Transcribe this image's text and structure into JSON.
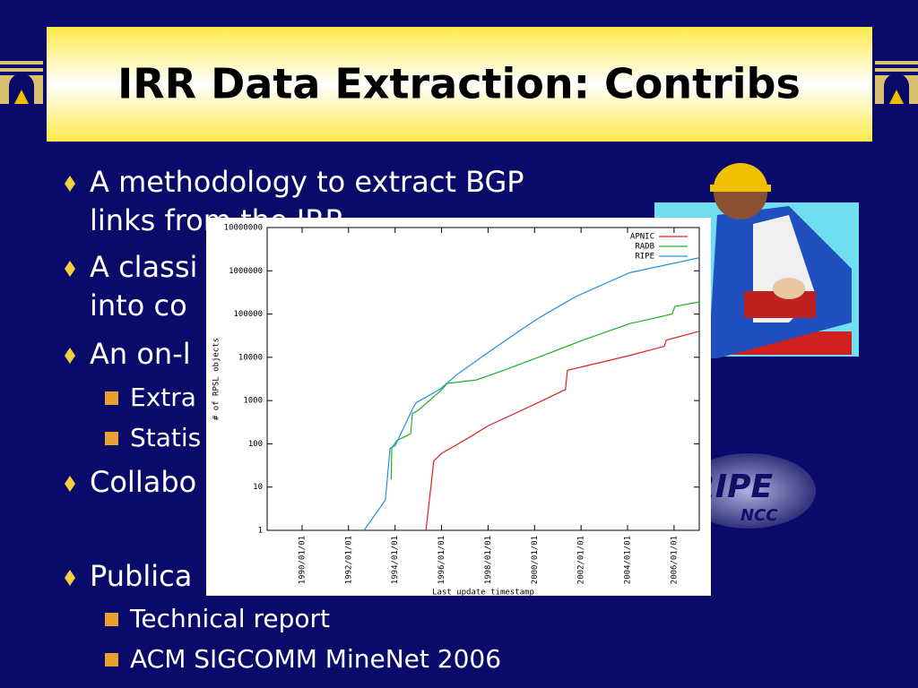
{
  "slide": {
    "title": "IRR Data Extraction: Contribs",
    "bullets": [
      {
        "lines": [
          "A methodology to extract BGP",
          "links from the IRR"
        ],
        "sub": []
      },
      {
        "lines": [
          "A classi",
          "into co"
        ],
        "sub": []
      },
      {
        "lines": [
          "An on-l"
        ],
        "sub": [
          "Extra",
          "Statis"
        ]
      },
      {
        "lines": [
          "Collabo"
        ],
        "sub": []
      },
      {
        "lines": [
          "Publica"
        ],
        "sub": [
          "Technical report",
          "ACM SIGCOMM MineNet 2006"
        ]
      }
    ],
    "logo": [
      "RIPE",
      "NCC"
    ]
  },
  "chart_data": {
    "type": "line",
    "xlabel": "Last update timestamp",
    "ylabel": "# of RPSL objects",
    "log_y": true,
    "legend": "upper right",
    "xlim": [
      "1988/07/01",
      "2007/02/01"
    ],
    "xticks": [
      "1990/01/01",
      "1992/01/01",
      "1994/01/01",
      "1996/01/01",
      "1998/01/01",
      "2000/01/01",
      "2002/01/01",
      "2004/01/01",
      "2006/01/01"
    ],
    "ylim": [
      1,
      10000000
    ],
    "yticks": [
      1,
      10,
      100,
      1000,
      10000,
      100000,
      1000000,
      10000000
    ],
    "series": [
      {
        "name": "APNIC",
        "color": "#e02020",
        "x": [
          "1995/05/01",
          "1995/09/01",
          "1996/01/01",
          "1997/02/01",
          "1998/01/01",
          "2000/03/01",
          "2001/05/01",
          "2001/06/01",
          "2004/02/01",
          "2005/08/01",
          "2005/09/01",
          "2007/02/01"
        ],
        "values": [
          1,
          40,
          60,
          130,
          260,
          900,
          1800,
          5000,
          11000,
          18000,
          25000,
          40000
        ]
      },
      {
        "name": "RADB",
        "color": "#20b020",
        "x": [
          "1993/11/01",
          "1993/11/10",
          "1994/02/01",
          "1994/09/01",
          "1994/10/01",
          "1995/01/01",
          "1995/12/01",
          "1996/04/01",
          "1997/07/01",
          "1998/09/01",
          "2000/03/01",
          "2002/02/01",
          "2004/02/01",
          "2005/12/01",
          "2006/01/15",
          "2007/02/01"
        ],
        "values": [
          15,
          80,
          120,
          170,
          500,
          600,
          1600,
          2500,
          3000,
          5000,
          10000,
          25000,
          60000,
          100000,
          150000,
          190000
        ]
      },
      {
        "name": "RIPE",
        "color": "#2090e0",
        "x": [
          "1992/09/01",
          "1993/08/01",
          "1993/10/15",
          "1994/01/01",
          "1994/10/15",
          "1994/12/01",
          "1995/12/01",
          "1996/09/01",
          "1997/12/01",
          "1999/05/01",
          "2000/03/01",
          "2001/10/01",
          "2004/02/01",
          "2007/02/01"
        ],
        "values": [
          1,
          5,
          80,
          90,
          700,
          900,
          1800,
          4000,
          12000,
          40000,
          80000,
          250000,
          900000,
          2000000
        ]
      }
    ]
  }
}
